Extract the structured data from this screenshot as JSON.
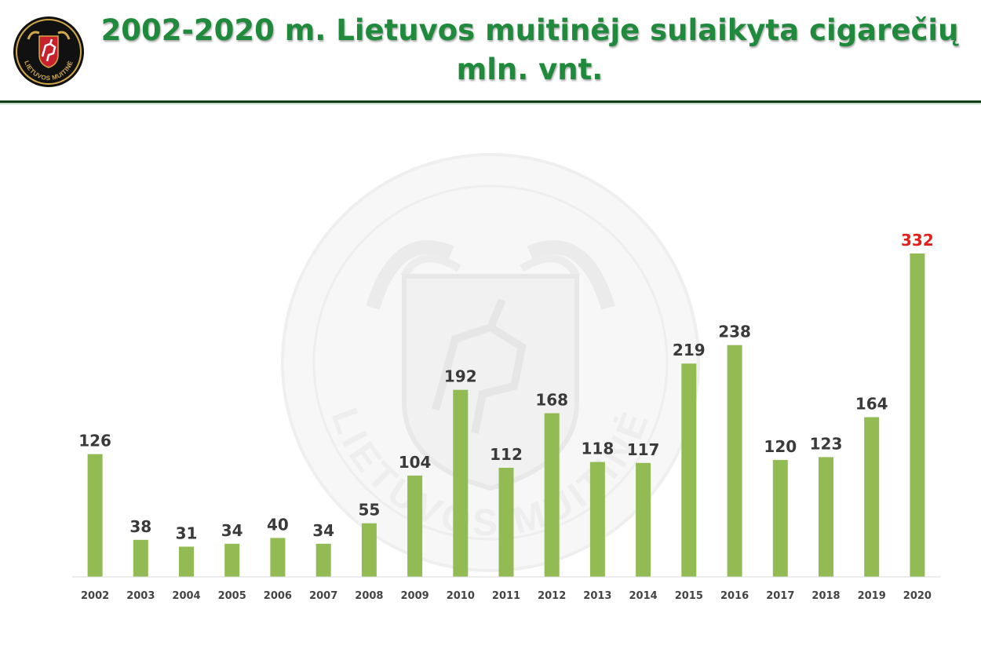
{
  "header": {
    "logo": {
      "text": "LIETUVOS MUITINĖ",
      "icon": "vytis-emblem-icon"
    },
    "title_line1": "2002-2020 m. Lietuvos muitinėje sulaikyta cigarečių",
    "title_line2": "mln. vnt."
  },
  "watermark": {
    "text": "LIETUVOS MUITINĖ",
    "icon": "vytis-watermark-icon"
  },
  "colors": {
    "title": "#1f8a3b",
    "bar": "#92bb54",
    "label": "#3a3a3a",
    "highlight": "#e0201b",
    "axis": "#d9d9d9",
    "rule": "#0e3d17"
  },
  "chart_data": {
    "type": "bar",
    "categories": [
      "2002",
      "2003",
      "2004",
      "2005",
      "2006",
      "2007",
      "2008",
      "2009",
      "2010",
      "2011",
      "2012",
      "2013",
      "2014",
      "2015",
      "2016",
      "2017",
      "2018",
      "2019",
      "2020"
    ],
    "values": [
      126,
      38,
      31,
      34,
      40,
      34,
      55,
      104,
      192,
      112,
      168,
      118,
      117,
      219,
      238,
      120,
      123,
      164,
      332
    ],
    "data_labels": [
      "126",
      "38",
      "31",
      "34",
      "40",
      "34",
      "55",
      "104",
      "192",
      "112",
      "168",
      "118",
      "117",
      "219",
      "238",
      "120",
      "123",
      "164",
      "332"
    ],
    "highlight_category": "2020",
    "ylim": [
      0,
      332
    ],
    "grid": false,
    "legend": false
  }
}
